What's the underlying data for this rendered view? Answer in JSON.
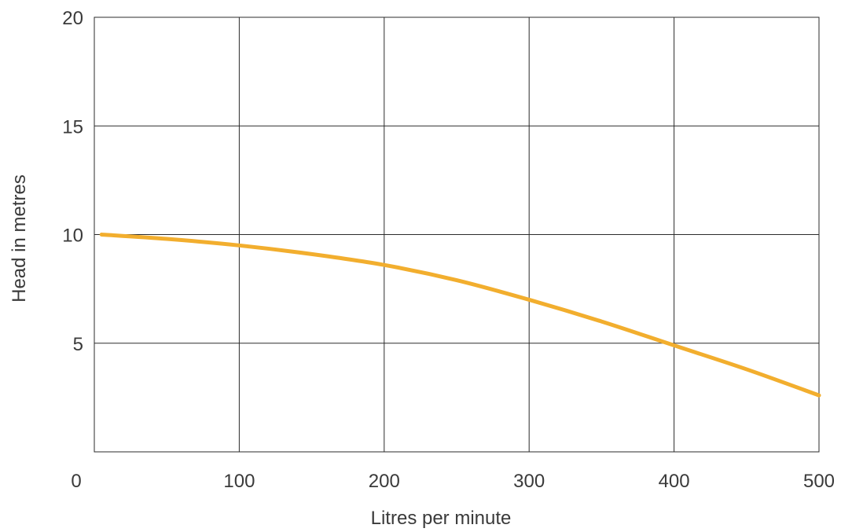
{
  "chart_data": {
    "type": "line",
    "title": "",
    "xlabel": "Litres per minute",
    "ylabel": "Head in metres",
    "xlim": [
      0,
      500
    ],
    "ylim": [
      0,
      20
    ],
    "x_ticks": [
      0,
      100,
      200,
      300,
      400,
      500
    ],
    "y_ticks": [
      5,
      10,
      15,
      20
    ],
    "grid": true,
    "legend": "none",
    "series": [
      {
        "color": "#f2ae2e",
        "x": [
          0,
          50,
          100,
          150,
          200,
          250,
          300,
          350,
          400,
          450,
          500
        ],
        "y": [
          10,
          9.8,
          9.5,
          9.1,
          8.6,
          7.9,
          7.0,
          6.0,
          4.9,
          3.8,
          2.6
        ]
      }
    ]
  }
}
